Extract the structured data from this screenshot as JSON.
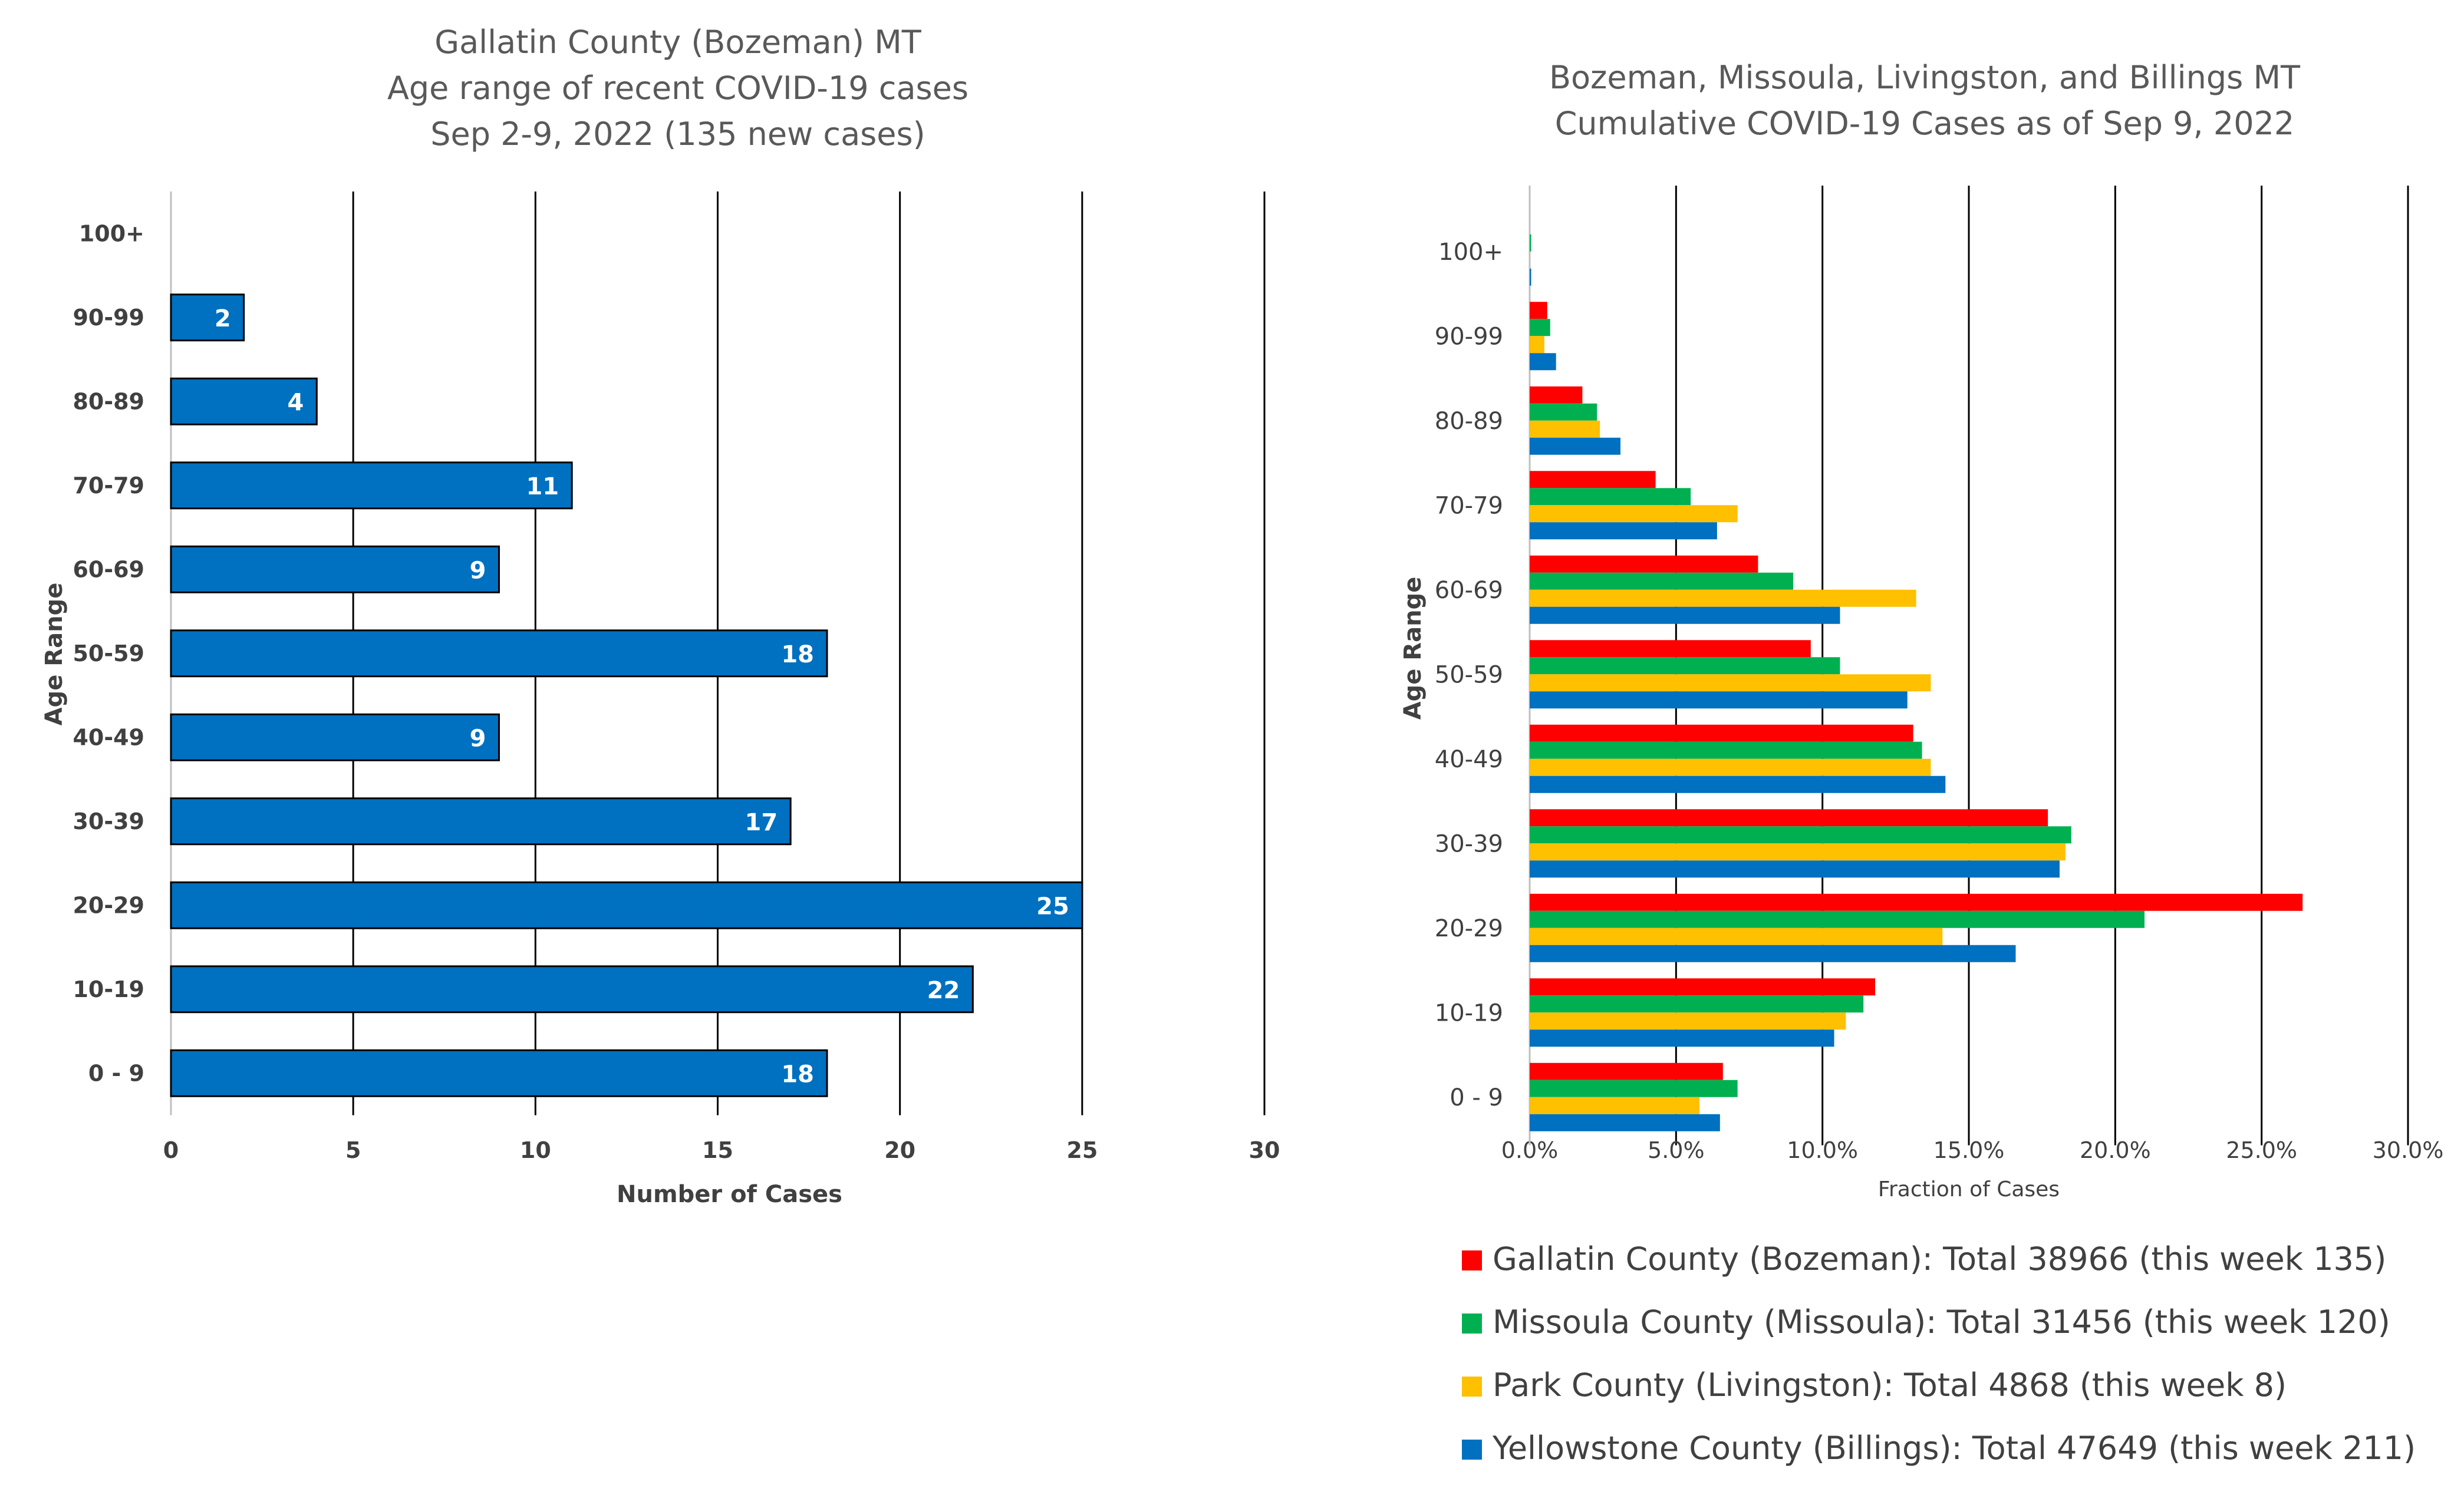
{
  "chart_data": [
    {
      "type": "bar",
      "orientation": "horizontal",
      "title": [
        "Gallatin County (Bozeman) MT",
        "Age range of recent COVID-19 cases",
        "Sep 2-9, 2022 (135 new cases)"
      ],
      "xlabel": "Number of Cases",
      "ylabel": "Age Range",
      "categories": [
        "100+",
        "90-99",
        "80-89",
        "70-79",
        "60-69",
        "50-59",
        "40-49",
        "30-39",
        "20-29",
        "10-19",
        "0 - 9"
      ],
      "values": [
        0,
        2,
        4,
        11,
        9,
        18,
        9,
        17,
        25,
        22,
        18
      ],
      "data_labels": [
        "",
        "2",
        "4",
        "11",
        "9",
        "18",
        "9",
        "17",
        "25",
        "22",
        "18"
      ],
      "xlim": [
        0,
        30
      ],
      "xticks": [
        "0",
        "5",
        "10",
        "15",
        "20",
        "25",
        "30"
      ],
      "grid": "vertical",
      "color": "#0070C0"
    },
    {
      "type": "bar",
      "orientation": "horizontal",
      "title": [
        "Bozeman, Missoula, Livingston, and Billings MT",
        "Cumulative COVID-19 Cases as of Sep 9, 2022"
      ],
      "xlabel": "Fraction of Cases",
      "ylabel": "Age Range",
      "categories": [
        "100+",
        "90-99",
        "80-89",
        "70-79",
        "60-69",
        "50-59",
        "40-49",
        "30-39",
        "20-29",
        "10-19",
        "0 - 9"
      ],
      "xlim": [
        0,
        0.3
      ],
      "xticks": [
        "0.0%",
        "5.0%",
        "10.0%",
        "15.0%",
        "20.0%",
        "25.0%",
        "30.0%"
      ],
      "grid": "vertical",
      "legend_position": "bottom",
      "series": [
        {
          "name": "Gallatin County (Bozeman): Total 38966 (this week 135)",
          "color": "#FF0000",
          "values": [
            0.0,
            0.006,
            0.018,
            0.043,
            0.078,
            0.096,
            0.131,
            0.177,
            0.264,
            0.118,
            0.066
          ]
        },
        {
          "name": "Missoula County (Missoula): Total 31456 (this week 120)",
          "color": "#00B050",
          "values": [
            0.0005,
            0.007,
            0.023,
            0.055,
            0.09,
            0.106,
            0.134,
            0.185,
            0.21,
            0.114,
            0.071
          ]
        },
        {
          "name": "Park County (Livingston): Total 4868 (this week 8)",
          "color": "#FFC000",
          "values": [
            0.0,
            0.005,
            0.024,
            0.071,
            0.132,
            0.137,
            0.137,
            0.183,
            0.141,
            0.108,
            0.058
          ]
        },
        {
          "name": "Yellowstone County (Billings): Total 47649 (this week 211)",
          "color": "#0070C0",
          "values": [
            0.0005,
            0.009,
            0.031,
            0.064,
            0.106,
            0.129,
            0.142,
            0.181,
            0.166,
            0.104,
            0.065
          ]
        }
      ]
    }
  ]
}
